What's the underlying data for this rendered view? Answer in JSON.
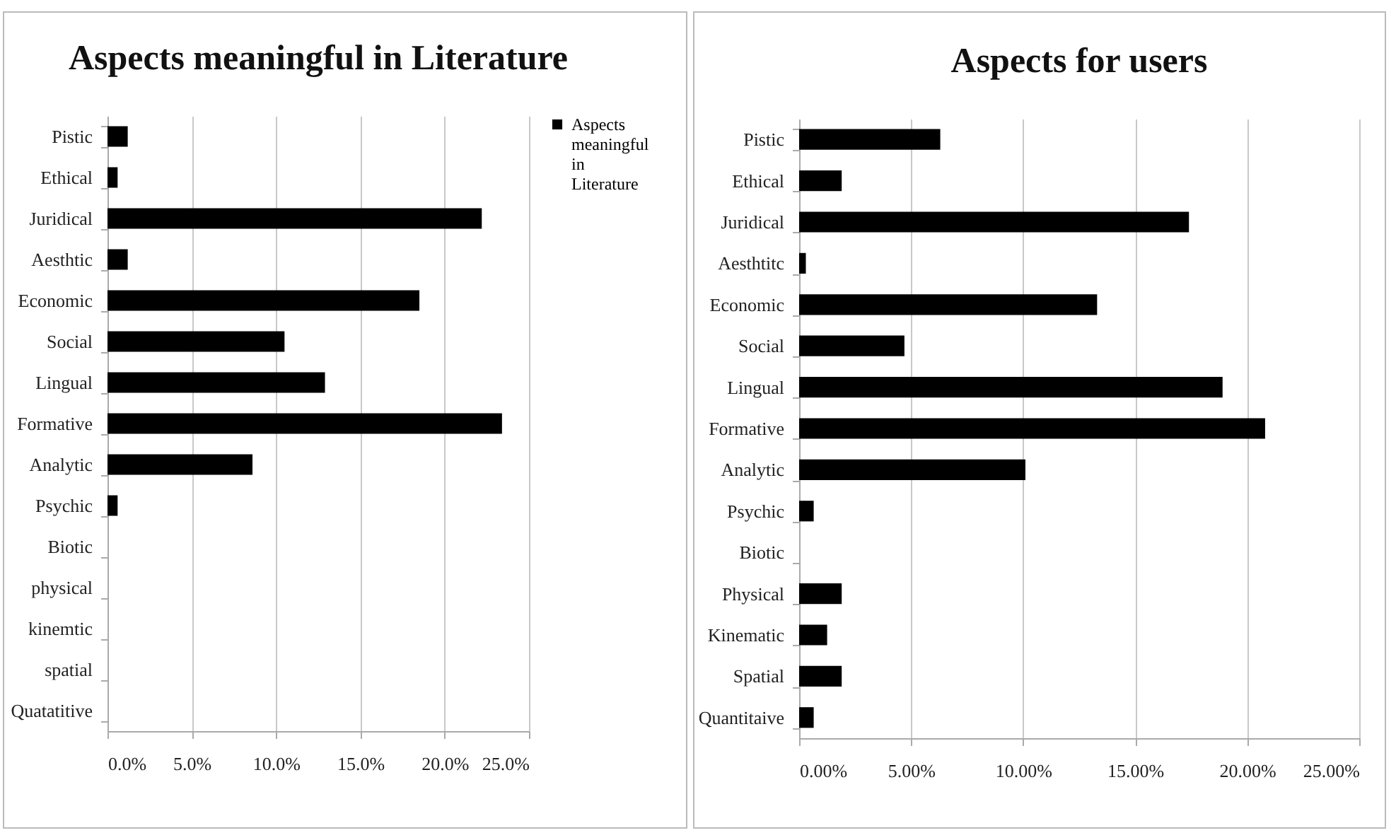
{
  "chart_data": [
    {
      "type": "bar",
      "title": "Aspects meaningful in Literature",
      "orientation": "horizontal",
      "categories": [
        "Pistic",
        "Ethical",
        "Juridical",
        "Aesthtic",
        "Economic",
        "Social",
        "Lingual",
        "Formative",
        "Analytic",
        "Psychic",
        "Biotic",
        "physical",
        "kinemtic",
        "spatial",
        "Quatatitive"
      ],
      "series": [
        {
          "name": "Aspects meaningful in Literature",
          "color": "#000000",
          "values": [
            1.2,
            0.6,
            22.2,
            1.2,
            18.5,
            10.5,
            12.9,
            23.4,
            8.6,
            0.6,
            0,
            0,
            0,
            0,
            0
          ]
        }
      ],
      "xlim": [
        0,
        25
      ],
      "xticks": [
        {
          "value": 0,
          "label": "0.0%"
        },
        {
          "value": 5,
          "label": "5.0%"
        },
        {
          "value": 10,
          "label": "10.0%"
        },
        {
          "value": 15,
          "label": "15.0%"
        },
        {
          "value": 20,
          "label": "20.0%"
        },
        {
          "value": 25,
          "label": "25.0%"
        }
      ],
      "grid": "x",
      "legend": "right"
    },
    {
      "type": "bar",
      "title": "Aspects for users",
      "orientation": "horizontal",
      "categories": [
        "Pistic",
        "Ethical",
        "Juridical",
        "Aesthtitc",
        "Economic",
        "Social",
        "Lingual",
        "Formative",
        "Analytic",
        "Psychic",
        "Biotic",
        "Physical",
        "Kinematic",
        "Spatial",
        "Quantitaive"
      ],
      "values": [
        6.3,
        1.9,
        17.4,
        0.3,
        13.3,
        4.7,
        18.9,
        20.8,
        10.1,
        0.65,
        0,
        1.9,
        1.25,
        1.9,
        0.65
      ],
      "color": "#000000",
      "xlim": [
        0,
        25
      ],
      "xticks": [
        {
          "value": 0,
          "label": "0.00%"
        },
        {
          "value": 5,
          "label": "5.00%"
        },
        {
          "value": 10,
          "label": "10.00%"
        },
        {
          "value": 15,
          "label": "15.00%"
        },
        {
          "value": 20,
          "label": "20.00%"
        },
        {
          "value": 25,
          "label": "25.00%"
        }
      ],
      "grid": "x"
    }
  ]
}
